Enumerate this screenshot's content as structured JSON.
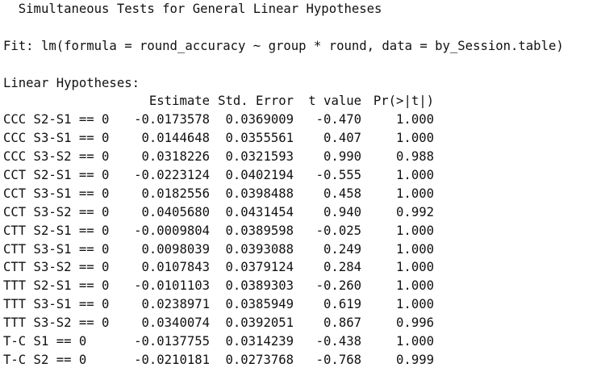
{
  "output": {
    "title": "  Simultaneous Tests for General Linear Hypotheses",
    "fit_line": "Fit: lm(formula = round_accuracy ~ group * round, data = by_Session.table)",
    "section_label": "Linear Hypotheses:",
    "columns": {
      "estimate": "Estimate",
      "std_error": "Std. Error",
      "t_value": "t value",
      "p_value": "Pr(>|t|)"
    },
    "rows": [
      {
        "label": "CCC S2-S1 == 0",
        "estimate": "-0.0173578",
        "std_error": "0.0369009",
        "t_value": "-0.470",
        "p_value": "1.000"
      },
      {
        "label": "CCC S3-S1 == 0",
        "estimate": "0.0144648",
        "std_error": "0.0355561",
        "t_value": "0.407",
        "p_value": "1.000"
      },
      {
        "label": "CCC S3-S2 == 0",
        "estimate": "0.0318226",
        "std_error": "0.0321593",
        "t_value": "0.990",
        "p_value": "0.988"
      },
      {
        "label": "CCT S2-S1 == 0",
        "estimate": "-0.0223124",
        "std_error": "0.0402194",
        "t_value": "-0.555",
        "p_value": "1.000"
      },
      {
        "label": "CCT S3-S1 == 0",
        "estimate": "0.0182556",
        "std_error": "0.0398488",
        "t_value": "0.458",
        "p_value": "1.000"
      },
      {
        "label": "CCT S3-S2 == 0",
        "estimate": "0.0405680",
        "std_error": "0.0431454",
        "t_value": "0.940",
        "p_value": "0.992"
      },
      {
        "label": "CTT S2-S1 == 0",
        "estimate": "-0.0009804",
        "std_error": "0.0389598",
        "t_value": "-0.025",
        "p_value": "1.000"
      },
      {
        "label": "CTT S3-S1 == 0",
        "estimate": "0.0098039",
        "std_error": "0.0393088",
        "t_value": "0.249",
        "p_value": "1.000"
      },
      {
        "label": "CTT S3-S2 == 0",
        "estimate": "0.0107843",
        "std_error": "0.0379124",
        "t_value": "0.284",
        "p_value": "1.000"
      },
      {
        "label": "TTT S2-S1 == 0",
        "estimate": "-0.0101103",
        "std_error": "0.0389303",
        "t_value": "-0.260",
        "p_value": "1.000"
      },
      {
        "label": "TTT S3-S1 == 0",
        "estimate": "0.0238971",
        "std_error": "0.0385949",
        "t_value": "0.619",
        "p_value": "1.000"
      },
      {
        "label": "TTT S3-S2 == 0",
        "estimate": "0.0340074",
        "std_error": "0.0392051",
        "t_value": "0.867",
        "p_value": "0.996"
      },
      {
        "label": "T-C S1 == 0",
        "estimate": "-0.0137755",
        "std_error": "0.0314239",
        "t_value": "-0.438",
        "p_value": "1.000"
      },
      {
        "label": "T-C S2 == 0",
        "estimate": "-0.0210181",
        "std_error": "0.0273768",
        "t_value": "-0.768",
        "p_value": "0.999"
      }
    ]
  }
}
